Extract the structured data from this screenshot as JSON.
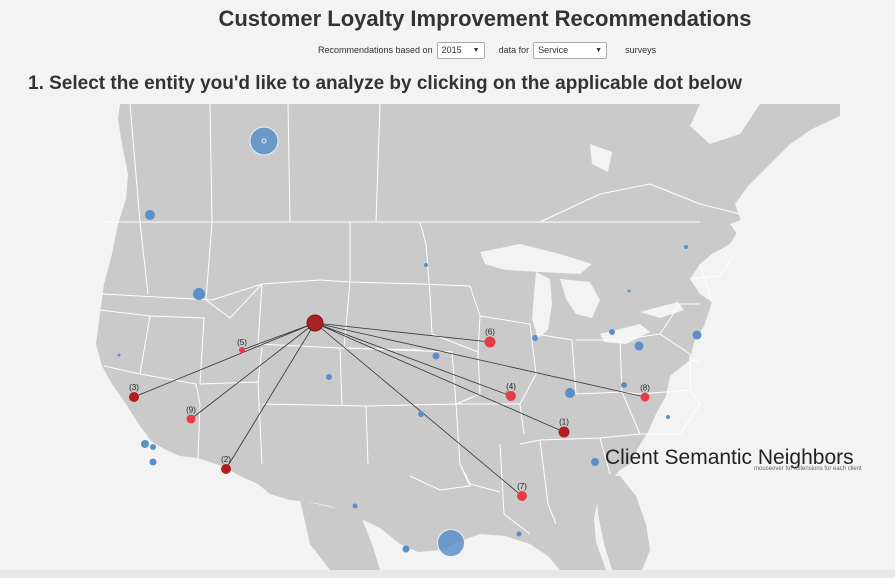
{
  "page": {
    "title": "Customer Loyalty Improvement Recommendations",
    "controls": {
      "prefix": "Recommendations based on",
      "year_value": "2015",
      "middle": "data for",
      "type_value": "Service",
      "suffix": "surveys"
    },
    "step_heading": "1. Select the entity you'd like to analyze by clicking on the applicable dot below",
    "neighbors_title": "Client Semantic Neighbors",
    "neighbors_hint": "mouseover for extensions for each client"
  },
  "colors": {
    "land": "#cacaca",
    "border": "#ffffff",
    "blue_dot": "#5b8fc7",
    "red_dot": "#e83c46",
    "dark_red": "#b51c22",
    "hub": "#a52323",
    "edge": "#333333"
  },
  "map": {
    "neighbors": [
      {
        "label": "(1)"
      },
      {
        "label": "(2)"
      },
      {
        "label": "(3)"
      },
      {
        "label": "(4)"
      },
      {
        "label": "(5)"
      },
      {
        "label": "(6)"
      },
      {
        "label": "(7)"
      },
      {
        "label": "(8)"
      },
      {
        "label": "(9)"
      }
    ]
  }
}
